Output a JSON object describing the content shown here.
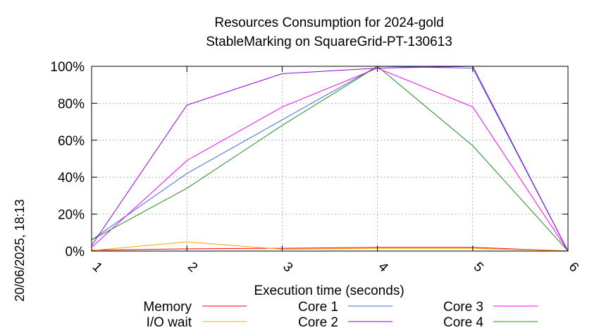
{
  "chart_data": {
    "type": "line",
    "title": "Resources Consumption for 2024-gold",
    "subtitle": "StableMarking on SquareGrid-PT-130613",
    "xlabel": "Execution time (seconds)",
    "ylabel": "",
    "side_label": "20/06/2025, 18:13",
    "x": [
      1,
      2,
      3,
      4,
      5,
      6
    ],
    "xlim": [
      1,
      6
    ],
    "ylim": [
      0,
      100
    ],
    "x_ticks": [
      "1",
      "2",
      "3",
      "4",
      "5",
      "6"
    ],
    "y_ticks": [
      "0%",
      "20%",
      "40%",
      "60%",
      "80%",
      "100%"
    ],
    "y_tick_values": [
      0,
      20,
      40,
      60,
      80,
      100
    ],
    "grid": true,
    "legend_position": "bottom",
    "series": [
      {
        "name": "Memory",
        "color": "#ff0000",
        "values": [
          0.5,
          1.2,
          1.5,
          2,
          2,
          0
        ]
      },
      {
        "name": "I/O wait",
        "color": "#ffa500",
        "values": [
          0.3,
          5,
          1,
          1.5,
          1.5,
          0
        ]
      },
      {
        "name": "Core 1",
        "color": "#4169e1",
        "values": [
          6,
          42,
          71,
          100,
          99,
          0
        ]
      },
      {
        "name": "Core 2",
        "color": "#9400d3",
        "values": [
          3,
          79,
          96,
          99,
          100,
          0
        ]
      },
      {
        "name": "Core 3",
        "color": "#ff00ff",
        "values": [
          2,
          49,
          78,
          99,
          78,
          0
        ]
      },
      {
        "name": "Core 4",
        "color": "#228b22",
        "values": [
          6,
          34,
          68,
          100,
          57,
          0
        ]
      }
    ]
  }
}
